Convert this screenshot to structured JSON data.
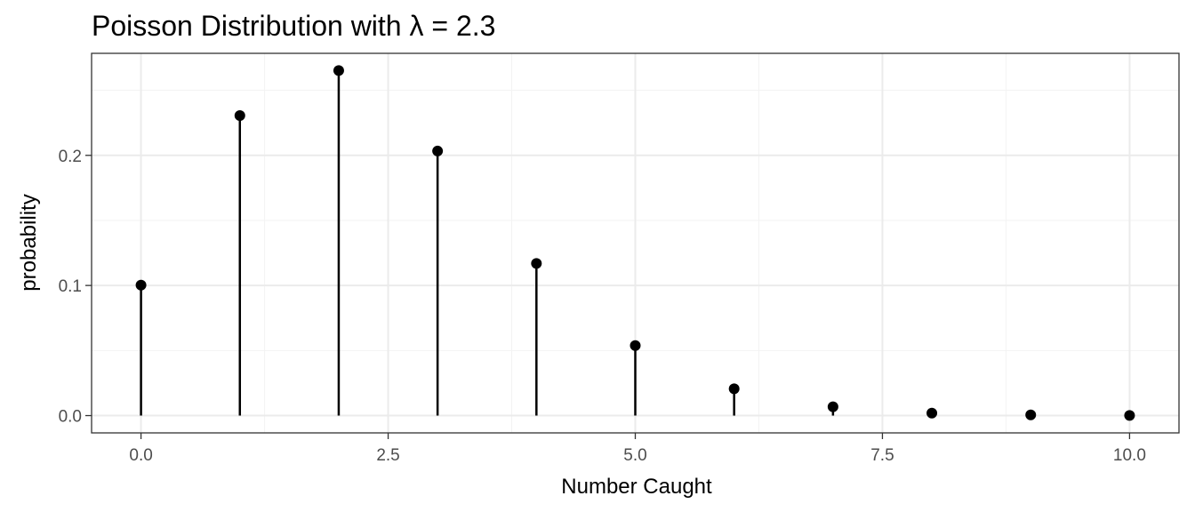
{
  "chart_data": {
    "type": "scatter",
    "title": "Poisson Distribution with  λ = 2.3",
    "xlabel": "Number Caught",
    "ylabel": "probability",
    "x": [
      0,
      1,
      2,
      3,
      4,
      5,
      6,
      7,
      8,
      9,
      10
    ],
    "y": [
      0.1003,
      0.2306,
      0.2652,
      0.2033,
      0.1169,
      0.0538,
      0.0206,
      0.0068,
      0.0019,
      0.0005,
      0.0001
    ],
    "xlim": [
      -0.5,
      10.5
    ],
    "ylim": [
      -0.0133,
      0.2784
    ],
    "xticks": [
      0,
      2.5,
      5,
      7.5,
      10
    ],
    "xtick_labels": [
      "0.0",
      "2.5",
      "5.0",
      "7.5",
      "10.0"
    ],
    "yticks": [
      0,
      0.1,
      0.2
    ],
    "ytick_labels": [
      "0.0",
      "0.1",
      "0.2"
    ],
    "grid": true,
    "legend": "none",
    "colors": {
      "marks": "#000000",
      "grid": "#ebebeb",
      "border": "#333333"
    }
  }
}
